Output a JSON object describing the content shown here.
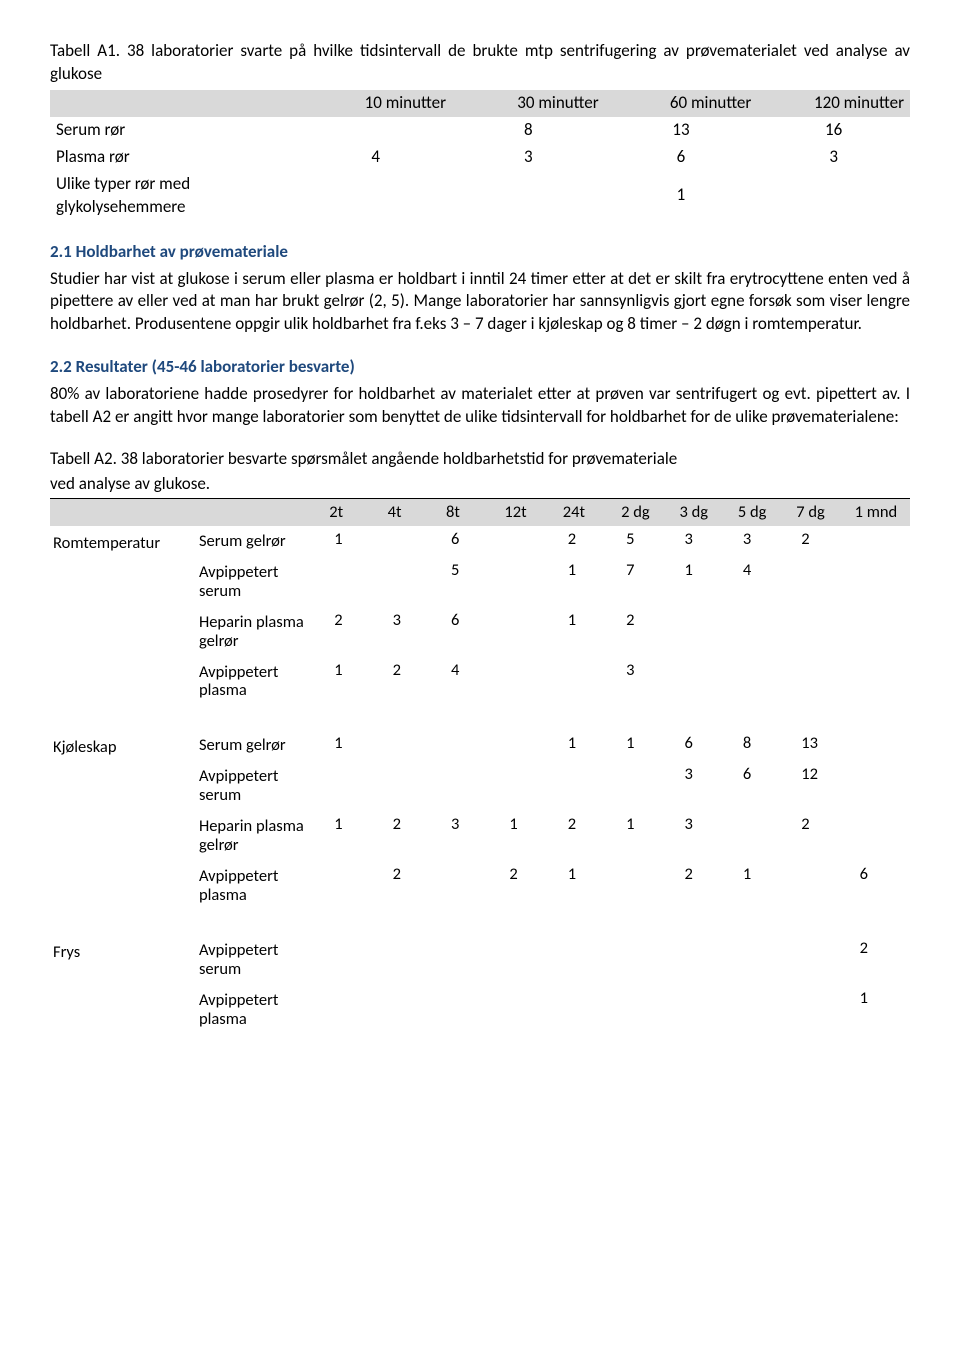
{
  "tableA1": {
    "caption": "Tabell A1. 38 laboratorier svarte på hvilke tidsintervall de brukte mtp sentrifugering av prøvematerialet ved analyse av glukose",
    "headers": [
      "10 minutter",
      "30 minutter",
      "60 minutter",
      "120 minutter"
    ],
    "rows": [
      {
        "label": "Serum rør",
        "cells": [
          "",
          "8",
          "13",
          "16"
        ]
      },
      {
        "label": "Plasma rør",
        "cells": [
          "4",
          "3",
          "6",
          "3"
        ]
      },
      {
        "label": "Ulike typer rør med glykolysehemmere",
        "cells": [
          "",
          "",
          "1",
          ""
        ]
      }
    ]
  },
  "section21": {
    "heading": "2.1 Holdbarhet av prøvemateriale",
    "body": "Studier har vist at glukose i serum eller plasma er holdbart i inntil 24 timer etter at det er skilt fra erytrocyttene enten ved å pipettere av eller ved at man har brukt gelrør (2, 5). Mange laboratorier har sannsynligvis gjort egne forsøk som viser lengre holdbarhet. Produsentene oppgir ulik holdbarhet fra f.eks 3 – 7 dager i kjøleskap og 8 timer – 2 døgn i romtemperatur."
  },
  "section22": {
    "heading": "2.2 Resultater (45-46 laboratorier besvarte)",
    "body": "80% av laboratoriene hadde prosedyrer for holdbarhet av materialet etter at prøven var sentrifugert og evt. pipettert av. I tabell A2 er angitt hvor mange laboratorier som benyttet de ulike tidsintervall for holdbarhet for de ulike prøvematerialene:"
  },
  "tableA2": {
    "captionLine1": "Tabell A2. 38 laboratorier besvarte spørsmålet angående holdbarhetstid for prøvemateriale",
    "captionLine2": "ved analyse av glukose.",
    "headers": [
      "2t",
      "4t",
      "8t",
      "12t",
      "24t",
      "2 dg",
      "3 dg",
      "5 dg",
      "7 dg",
      "1 mnd"
    ],
    "groups": [
      {
        "name": "Romtemperatur",
        "rows": [
          {
            "label": "Serum gelrør",
            "cells": [
              "1",
              "",
              "6",
              "",
              "2",
              "5",
              "3",
              "3",
              "2",
              ""
            ]
          },
          {
            "label": "Avpippetert serum",
            "cells": [
              "",
              "",
              "5",
              "",
              "1",
              "7",
              "1",
              "4",
              "",
              ""
            ]
          },
          {
            "label": "Heparin plasma gelrør",
            "cells": [
              "2",
              "3",
              "6",
              "",
              "1",
              "2",
              "",
              "",
              "",
              ""
            ]
          },
          {
            "label": "Avpippetert plasma",
            "cells": [
              "1",
              "2",
              "4",
              "",
              "",
              "3",
              "",
              "",
              "",
              ""
            ]
          }
        ]
      },
      {
        "name": "Kjøleskap",
        "rows": [
          {
            "label": "Serum gelrør",
            "cells": [
              "1",
              "",
              "",
              "",
              "1",
              "1",
              "6",
              "8",
              "13",
              ""
            ]
          },
          {
            "label": "Avpippetert serum",
            "cells": [
              "",
              "",
              "",
              "",
              "",
              "",
              "3",
              "6",
              "12",
              ""
            ]
          },
          {
            "label": "Heparin plasma gelrør",
            "cells": [
              "1",
              "2",
              "3",
              "1",
              "2",
              "1",
              "3",
              "",
              "2",
              ""
            ]
          },
          {
            "label": "Avpippetert plasma",
            "cells": [
              "",
              "2",
              "",
              "2",
              "1",
              "",
              "2",
              "1",
              "",
              "6"
            ]
          }
        ]
      },
      {
        "name": "Frys",
        "rows": [
          {
            "label": "Avpippetert serum",
            "cells": [
              "",
              "",
              "",
              "",
              "",
              "",
              "",
              "",
              "",
              "2"
            ]
          },
          {
            "label": "Avpippetert plasma",
            "cells": [
              "",
              "",
              "",
              "",
              "",
              "",
              "",
              "",
              "",
              "1"
            ]
          }
        ]
      }
    ]
  }
}
